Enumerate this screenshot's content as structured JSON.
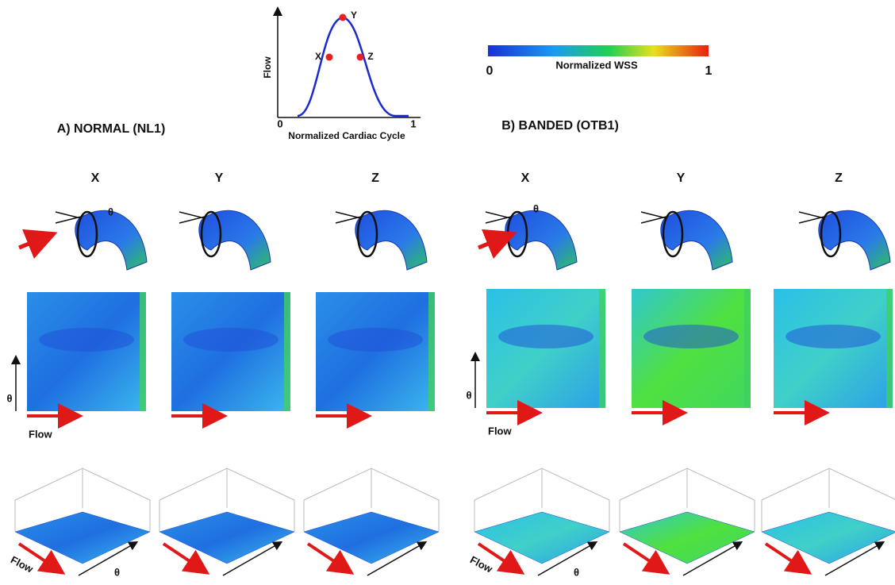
{
  "cycle_plot": {
    "y_label": "Flow",
    "x_label": "Normalized Cardiac Cycle",
    "x_ticks": [
      0,
      1
    ],
    "points": [
      "X",
      "Y",
      "Z"
    ]
  },
  "colorbar": {
    "label": "Normalized WSS",
    "min": 0,
    "max": 1
  },
  "panels": [
    {
      "title": "A) NORMAL (NL1)",
      "columns": [
        "X",
        "Y",
        "Z"
      ],
      "angle_label": "θ",
      "flow_label": "Flow"
    },
    {
      "title": "B) BANDED (OTB1)",
      "columns": [
        "X",
        "Y",
        "Z"
      ],
      "angle_label": "θ",
      "flow_label": "Flow"
    }
  ]
}
